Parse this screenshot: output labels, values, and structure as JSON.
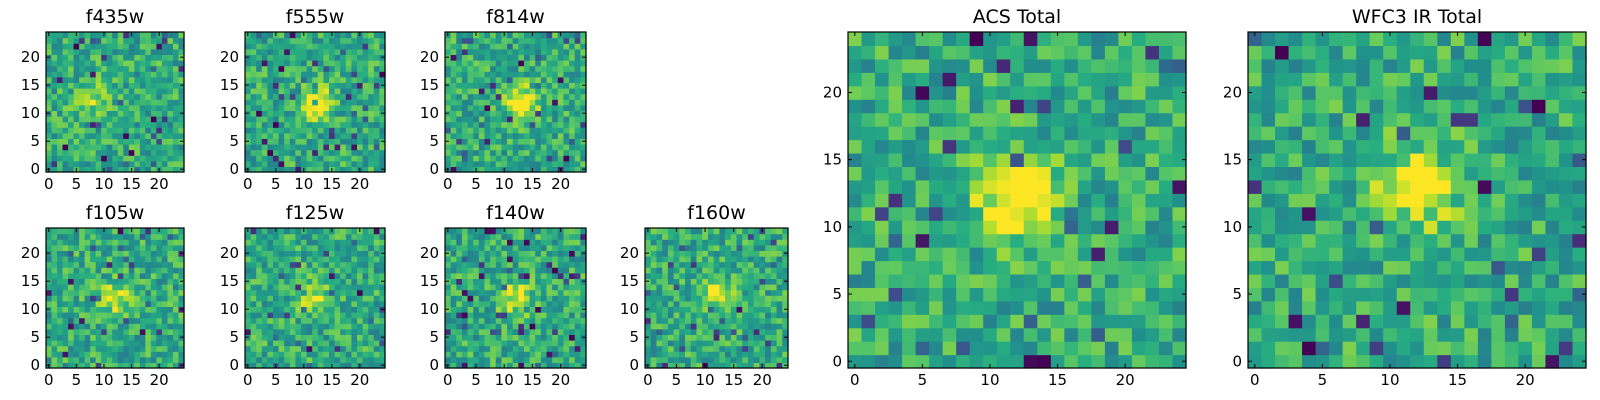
{
  "figure": {
    "colormap": "viridis"
  },
  "chart_data": [
    {
      "type": "heatmap",
      "title": "f435w",
      "grid": [
        25,
        25
      ],
      "center": [
        8,
        13
      ],
      "peak": 0.25,
      "noise_seed": 11,
      "xticks": [
        "0",
        "5",
        "10",
        "15",
        "20"
      ],
      "yticks": [
        "0",
        "5",
        "10",
        "15",
        "20"
      ]
    },
    {
      "type": "heatmap",
      "title": "f555w",
      "grid": [
        25,
        25
      ],
      "center": [
        12,
        12
      ],
      "peak": 0.45,
      "noise_seed": 23,
      "xticks": [
        "0",
        "5",
        "10",
        "15",
        "20"
      ],
      "yticks": [
        "0",
        "5",
        "10",
        "15",
        "20"
      ]
    },
    {
      "type": "heatmap",
      "title": "f814w",
      "grid": [
        25,
        25
      ],
      "center": [
        13,
        12
      ],
      "peak": 0.5,
      "noise_seed": 37,
      "xticks": [
        "0",
        "5",
        "10",
        "15",
        "20"
      ],
      "yticks": [
        "0",
        "5",
        "10",
        "15",
        "20"
      ]
    },
    {
      "type": "heatmap",
      "title": "f105w",
      "grid": [
        25,
        25
      ],
      "center": [
        12,
        12
      ],
      "peak": 0.3,
      "noise_seed": 41,
      "xticks": [
        "0",
        "5",
        "10",
        "15",
        "20"
      ],
      "yticks": [
        "0",
        "5",
        "10",
        "15",
        "20"
      ]
    },
    {
      "type": "heatmap",
      "title": "f125w",
      "grid": [
        25,
        25
      ],
      "center": [
        12,
        12
      ],
      "peak": 0.3,
      "noise_seed": 53,
      "xticks": [
        "0",
        "5",
        "10",
        "15",
        "20"
      ],
      "yticks": [
        "0",
        "5",
        "10",
        "15",
        "20"
      ]
    },
    {
      "type": "heatmap",
      "title": "f140w",
      "grid": [
        25,
        25
      ],
      "center": [
        12,
        12
      ],
      "peak": 0.35,
      "noise_seed": 67,
      "xticks": [
        "0",
        "5",
        "10",
        "15",
        "20"
      ],
      "yticks": [
        "0",
        "5",
        "10",
        "15",
        "20"
      ]
    },
    {
      "type": "heatmap",
      "title": "f160w",
      "grid": [
        25,
        25
      ],
      "center": [
        12,
        13
      ],
      "peak": 0.35,
      "noise_seed": 79,
      "xticks": [
        "0",
        "5",
        "10",
        "15",
        "20"
      ],
      "yticks": [
        "0",
        "5",
        "10",
        "15",
        "20"
      ]
    },
    {
      "type": "heatmap",
      "title": "ACS Total",
      "grid": [
        25,
        25
      ],
      "center": [
        12,
        12
      ],
      "peak": 0.55,
      "noise_seed": 97,
      "xticks": [
        "0",
        "5",
        "10",
        "15",
        "20"
      ],
      "yticks": [
        "0",
        "5",
        "10",
        "15",
        "20"
      ]
    },
    {
      "type": "heatmap",
      "title": "WFC3 IR Total",
      "grid": [
        25,
        25
      ],
      "center": [
        12,
        13
      ],
      "peak": 0.45,
      "noise_seed": 131,
      "xticks": [
        "0",
        "5",
        "10",
        "15",
        "20"
      ],
      "yticks": [
        "0",
        "5",
        "10",
        "15",
        "20"
      ]
    }
  ]
}
